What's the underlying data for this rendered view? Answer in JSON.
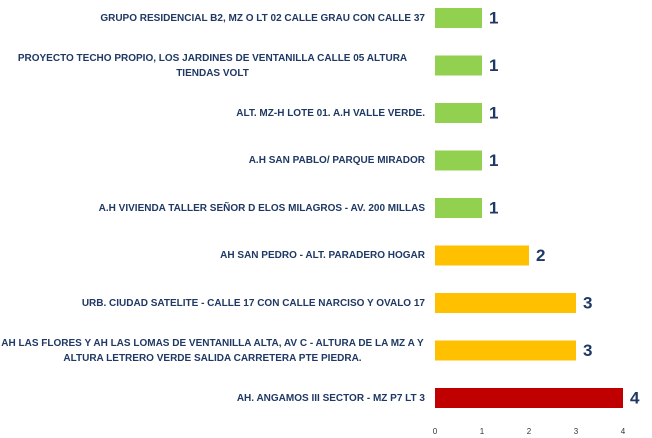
{
  "chart_data": {
    "type": "barh",
    "categories": [
      "GRUPO RESIDENCIAL B2,  MZ O LT 02  CALLE GRAU CON CALLE 37",
      "PROYECTO TECHO PROPIO, LOS JARDINES DE VENTANILLA CALLE 05 ALTURA TIENDAS VOLT",
      "ALT. MZ-H LOTE 01. A.H VALLE VERDE.",
      "A.H SAN PABLO/ PARQUE MIRADOR",
      "A.H VIVIENDA TALLER SEÑOR D ELOS MILAGROS - AV. 200 MILLAS",
      "AH SAN PEDRO - ALT. PARADERO HOGAR",
      "URB. CIUDAD  SATELITE - CALLE 17 CON CALLE NARCISO Y OVALO 17",
      "AH LAS FLORES Y AH LAS LOMAS DE VENTANILLA ALTA, AV C - ALTURA DE LA MZ A Y ALTURA LETRERO VERDE SALIDA CARRETERA PTE PIEDRA.",
      "AH. ANGAMOS III SECTOR  - MZ P7 LT 3"
    ],
    "values": [
      1,
      1,
      1,
      1,
      1,
      2,
      3,
      3,
      4
    ],
    "colors": [
      "#92d050",
      "#92d050",
      "#92d050",
      "#92d050",
      "#92d050",
      "#ffc000",
      "#ffc000",
      "#ffc000",
      "#c00000"
    ],
    "xlim": [
      0,
      4
    ],
    "xticks": [
      0,
      1,
      2,
      3,
      4
    ],
    "grid": false
  }
}
